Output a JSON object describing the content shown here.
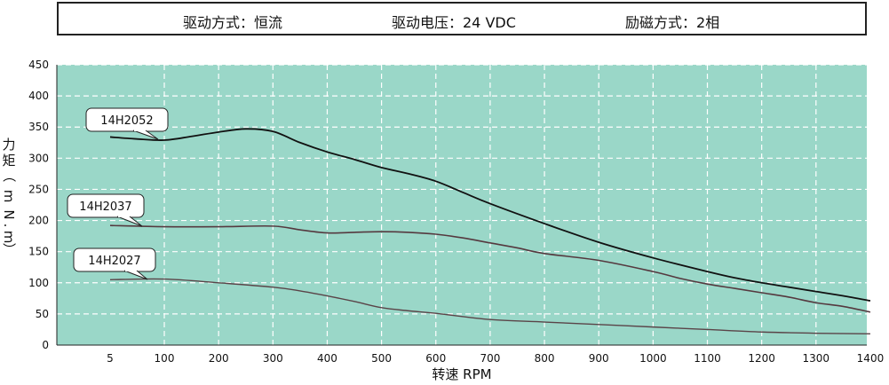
{
  "header": {
    "items": [
      "驱动方式：恒流",
      "驱动电压：24 VDC",
      "励磁方式：2相"
    ]
  },
  "colors": {
    "plot_bg": "#9ad7c8",
    "grid": "#ffffff",
    "series_dark": "#111111",
    "series_mid": "#55393f",
    "series_light": "#5a4448"
  },
  "chart_data": {
    "type": "line",
    "xlabel": "转速 RPM",
    "ylabel": "力矩（mN.m）",
    "x_ticks": [
      "5",
      "100",
      "200",
      "300",
      "400",
      "500",
      "600",
      "700",
      "800",
      "900",
      "1000",
      "1100",
      "1200",
      "1300",
      "1400"
    ],
    "y_ticks": [
      "0",
      "50",
      "100",
      "150",
      "200",
      "250",
      "300",
      "350",
      "400",
      "450"
    ],
    "ylim": [
      0,
      450
    ],
    "grid": true,
    "series": [
      {
        "name": "14H2052",
        "x": [
          5,
          50,
          100,
          150,
          200,
          250,
          300,
          350,
          400,
          450,
          500,
          550,
          600,
          650,
          700,
          800,
          900,
          1000,
          1100,
          1150,
          1200,
          1250,
          1300,
          1350,
          1400
        ],
        "y": [
          334,
          331,
          329,
          335,
          342,
          347,
          343,
          325,
          310,
          298,
          285,
          275,
          263,
          245,
          227,
          195,
          165,
          140,
          118,
          108,
          100,
          93,
          86,
          79,
          71
        ]
      },
      {
        "name": "14H2037",
        "x": [
          5,
          100,
          200,
          300,
          350,
          400,
          450,
          500,
          550,
          600,
          650,
          700,
          750,
          800,
          900,
          1000,
          1050,
          1100,
          1150,
          1200,
          1250,
          1300,
          1350,
          1400
        ],
        "y": [
          192,
          190,
          190,
          191,
          185,
          180,
          181,
          182,
          181,
          178,
          172,
          164,
          156,
          147,
          136,
          118,
          107,
          98,
          91,
          84,
          77,
          68,
          62,
          53
        ]
      },
      {
        "name": "14H2027",
        "x": [
          5,
          100,
          200,
          300,
          350,
          400,
          450,
          500,
          550,
          600,
          700,
          800,
          900,
          1000,
          1100,
          1200,
          1300,
          1400
        ],
        "y": [
          105,
          106,
          100,
          93,
          87,
          79,
          70,
          60,
          55,
          51,
          41,
          37,
          33,
          29,
          25,
          21,
          19,
          18
        ]
      }
    ],
    "labels": [
      "14H2052",
      "14H2037",
      "14H2027"
    ]
  }
}
